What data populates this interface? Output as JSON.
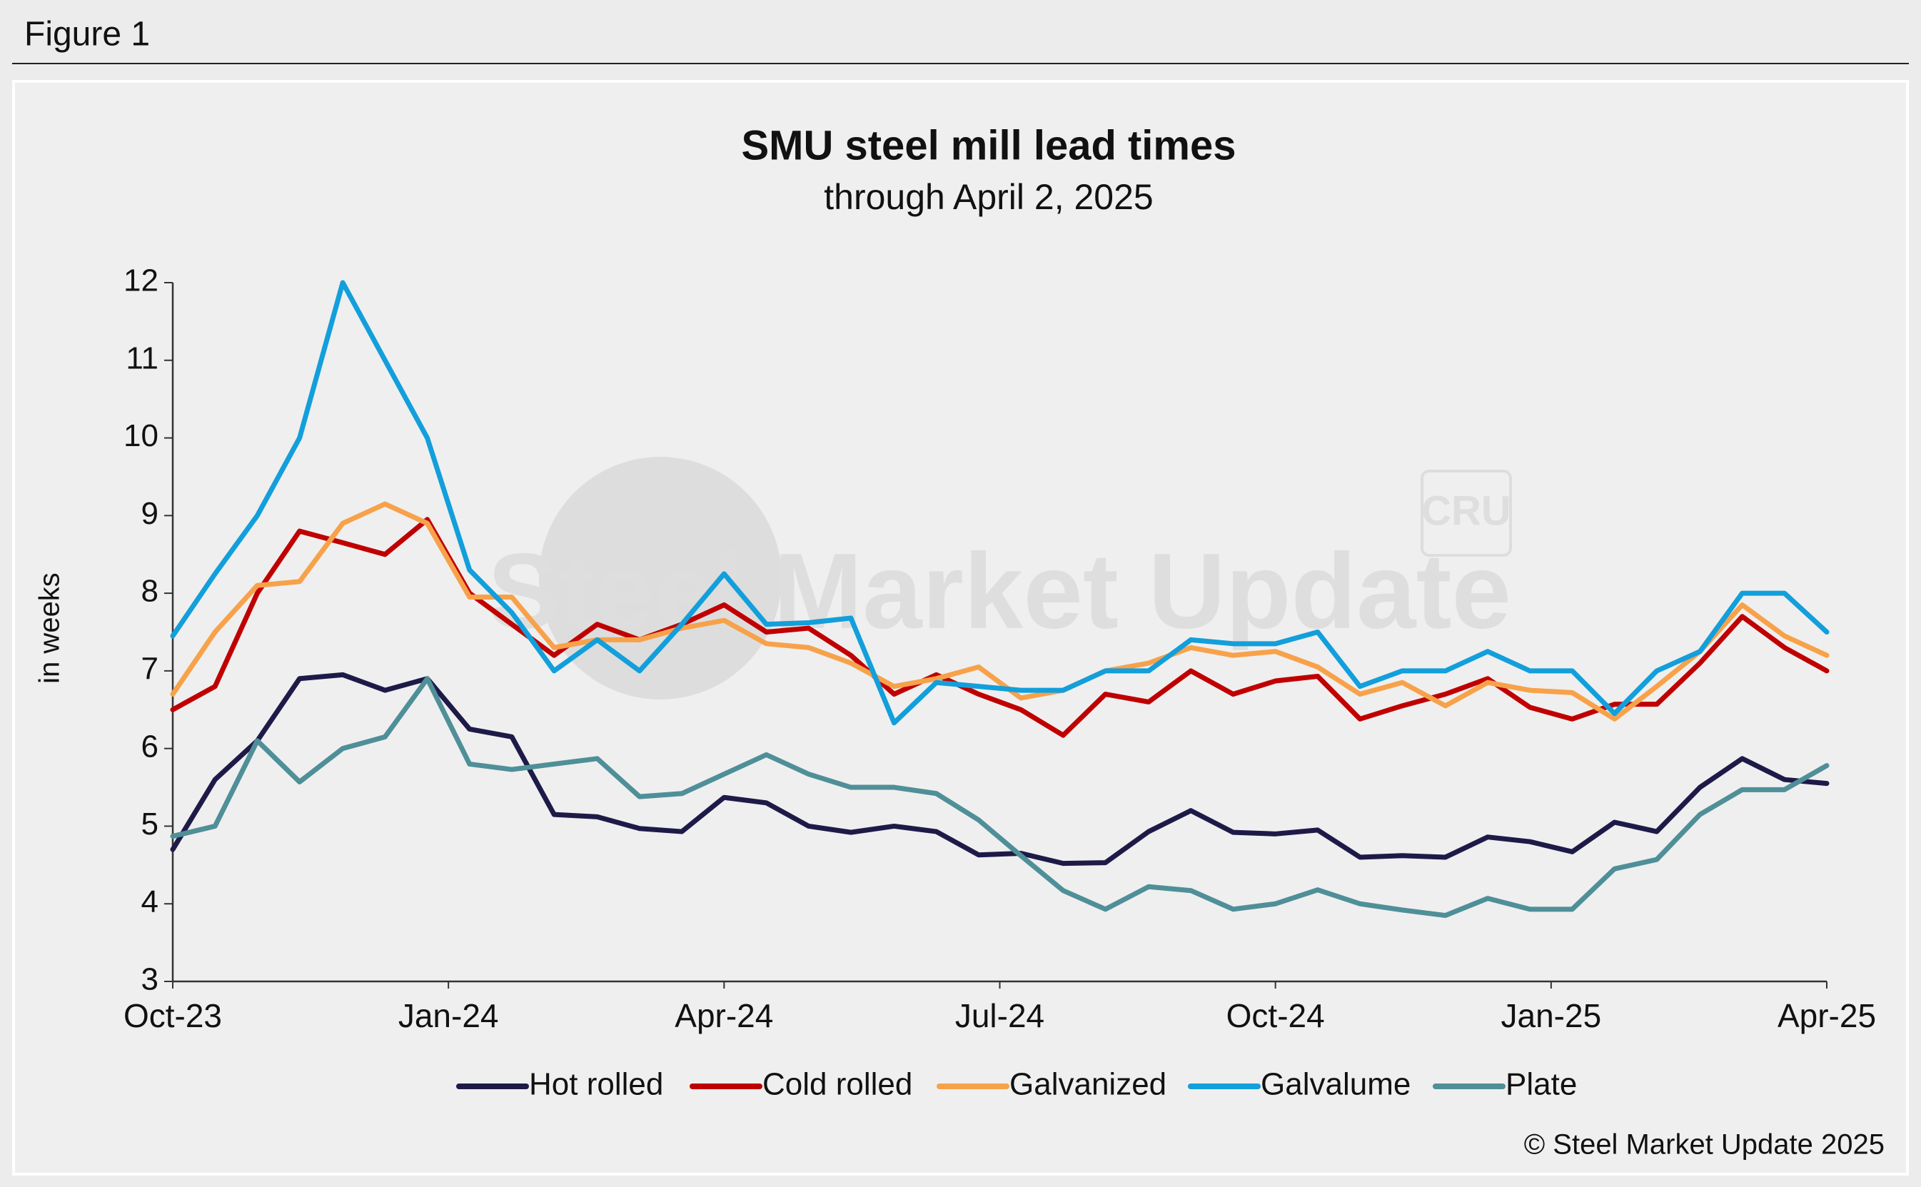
{
  "figure_label": "Figure 1",
  "watermark": {
    "brand": "Steel Market Update",
    "logo": "CRU"
  },
  "copyright": "© Steel Market Update 2025",
  "chart_data": {
    "type": "line",
    "title": "SMU steel mill lead times",
    "subtitle": "through April 2, 2025",
    "y_label": "in weeks",
    "x": [
      0,
      0.46,
      0.92,
      1.38,
      1.85,
      2.31,
      2.77,
      3.23,
      3.69,
      4.15,
      4.62,
      5.08,
      5.54,
      6,
      6.46,
      6.92,
      7.38,
      7.85,
      8.31,
      8.77,
      9.23,
      9.69,
      10.15,
      10.62,
      11.08,
      11.54,
      12,
      12.46,
      12.92,
      13.38,
      13.85,
      14.31,
      14.77,
      15.23,
      15.69,
      16.15,
      16.62,
      17.08,
      17.54,
      18
    ],
    "xlim": [
      0,
      18
    ],
    "xticks": [
      {
        "value": 0,
        "label": "Oct-23"
      },
      {
        "value": 3,
        "label": "Jan-24"
      },
      {
        "value": 6,
        "label": "Apr-24"
      },
      {
        "value": 9,
        "label": "Jul-24"
      },
      {
        "value": 12,
        "label": "Oct-24"
      },
      {
        "value": 15,
        "label": "Jan-25"
      },
      {
        "value": 18,
        "label": "Apr-25"
      }
    ],
    "ylim": [
      3,
      12
    ],
    "yticks": [
      3,
      4,
      5,
      6,
      7,
      8,
      9,
      10,
      11,
      12
    ],
    "legend": "bottom",
    "series": [
      {
        "name": "Hot rolled",
        "color": "#1e1a48",
        "values": [
          4.7,
          5.6,
          6.1,
          6.9,
          6.95,
          6.75,
          6.9,
          6.25,
          6.15,
          5.15,
          5.12,
          4.97,
          4.93,
          5.37,
          5.3,
          5.0,
          4.92,
          5.0,
          4.93,
          4.63,
          4.65,
          4.52,
          4.53,
          4.93,
          5.2,
          4.92,
          4.9,
          4.95,
          4.6,
          4.62,
          4.6,
          4.86,
          4.8,
          4.67,
          5.05,
          4.93,
          5.5,
          5.87,
          5.6,
          5.55
        ]
      },
      {
        "name": "Cold rolled",
        "color": "#c00000",
        "values": [
          6.5,
          6.8,
          8.0,
          8.8,
          8.65,
          8.5,
          8.95,
          8.0,
          7.6,
          7.2,
          7.6,
          7.4,
          7.6,
          7.85,
          7.5,
          7.55,
          7.2,
          6.7,
          6.95,
          6.7,
          6.5,
          6.17,
          6.7,
          6.6,
          7.0,
          6.7,
          6.87,
          6.93,
          6.38,
          6.55,
          6.7,
          6.9,
          6.53,
          6.38,
          6.57,
          6.57,
          7.1,
          7.7,
          7.3,
          7.0
        ]
      },
      {
        "name": "Galvanized",
        "color": "#f7a24a",
        "values": [
          6.7,
          7.5,
          8.1,
          8.15,
          8.9,
          9.15,
          8.9,
          7.95,
          7.95,
          7.3,
          7.4,
          7.4,
          7.55,
          7.65,
          7.35,
          7.3,
          7.1,
          6.8,
          6.9,
          7.05,
          6.65,
          6.75,
          7.0,
          7.1,
          7.3,
          7.2,
          7.25,
          7.05,
          6.7,
          6.85,
          6.55,
          6.85,
          6.75,
          6.72,
          6.38,
          6.8,
          7.25,
          7.85,
          7.45,
          7.2
        ]
      },
      {
        "name": "Galvalume",
        "color": "#129fdb",
        "values": [
          7.45,
          8.25,
          9.0,
          10.0,
          12.0,
          11.0,
          10.0,
          8.3,
          7.75,
          7.0,
          7.4,
          7.0,
          7.6,
          8.25,
          7.6,
          7.62,
          7.68,
          6.33,
          6.85,
          6.8,
          6.75,
          6.75,
          7.0,
          7.0,
          7.4,
          7.35,
          7.35,
          7.5,
          6.8,
          7.0,
          7.0,
          7.25,
          7.0,
          7.0,
          6.45,
          7.0,
          7.25,
          8.0,
          8.0,
          7.5
        ]
      },
      {
        "name": "Plate",
        "color": "#4f8f98",
        "values": [
          4.87,
          5.0,
          6.1,
          5.57,
          6.0,
          6.15,
          6.9,
          5.8,
          5.73,
          5.8,
          5.87,
          5.38,
          5.42,
          5.67,
          5.92,
          5.67,
          5.5,
          5.5,
          5.42,
          5.08,
          4.62,
          4.17,
          3.93,
          4.22,
          4.17,
          3.93,
          4.0,
          4.18,
          4.0,
          3.92,
          3.85,
          4.07,
          3.93,
          3.93,
          4.45,
          4.57,
          5.15,
          5.47,
          5.47,
          5.78
        ]
      }
    ]
  }
}
